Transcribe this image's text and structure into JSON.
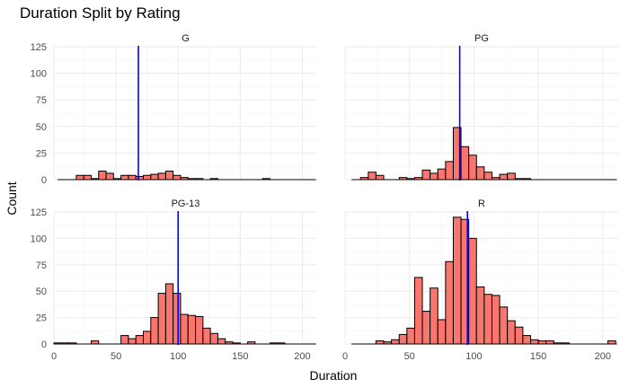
{
  "chart_data": {
    "type": "bar",
    "title": "Duration Split by Rating",
    "xlabel": "Duration",
    "ylabel": "Count",
    "xlim": [
      0,
      212
    ],
    "ylim": [
      0,
      125
    ],
    "x_ticks": [
      0,
      50,
      100,
      150,
      200
    ],
    "y_ticks": [
      0,
      25,
      50,
      75,
      100,
      125
    ],
    "bin_width": 6,
    "bar_color": "#F8766D",
    "vline_color": "#0000FF",
    "grid": true,
    "panels": [
      {
        "name": "G",
        "vline": 68,
        "bins": [
          {
            "x": 21,
            "count": 4
          },
          {
            "x": 27,
            "count": 4
          },
          {
            "x": 33,
            "count": 1
          },
          {
            "x": 39,
            "count": 8
          },
          {
            "x": 45,
            "count": 6
          },
          {
            "x": 51,
            "count": 1
          },
          {
            "x": 57,
            "count": 4
          },
          {
            "x": 63,
            "count": 4
          },
          {
            "x": 69,
            "count": 3
          },
          {
            "x": 75,
            "count": 4
          },
          {
            "x": 81,
            "count": 5
          },
          {
            "x": 87,
            "count": 6
          },
          {
            "x": 93,
            "count": 8
          },
          {
            "x": 99,
            "count": 4
          },
          {
            "x": 105,
            "count": 2
          },
          {
            "x": 111,
            "count": 1
          },
          {
            "x": 117,
            "count": 1
          },
          {
            "x": 129,
            "count": 1
          },
          {
            "x": 171,
            "count": 1
          }
        ]
      },
      {
        "name": "PG",
        "vline": 89,
        "bins": [
          {
            "x": 15,
            "count": 2
          },
          {
            "x": 21,
            "count": 7
          },
          {
            "x": 27,
            "count": 4
          },
          {
            "x": 45,
            "count": 2
          },
          {
            "x": 51,
            "count": 1
          },
          {
            "x": 57,
            "count": 2
          },
          {
            "x": 63,
            "count": 9
          },
          {
            "x": 69,
            "count": 6
          },
          {
            "x": 75,
            "count": 10
          },
          {
            "x": 81,
            "count": 17
          },
          {
            "x": 87,
            "count": 49
          },
          {
            "x": 93,
            "count": 31
          },
          {
            "x": 99,
            "count": 23
          },
          {
            "x": 105,
            "count": 12
          },
          {
            "x": 111,
            "count": 7
          },
          {
            "x": 117,
            "count": 2
          },
          {
            "x": 123,
            "count": 5
          },
          {
            "x": 129,
            "count": 6
          },
          {
            "x": 135,
            "count": 1
          },
          {
            "x": 141,
            "count": 1
          }
        ]
      },
      {
        "name": "PG-13",
        "vline": 100,
        "bins": [
          {
            "x": 3,
            "count": 1
          },
          {
            "x": 9,
            "count": 1
          },
          {
            "x": 15,
            "count": 1
          },
          {
            "x": 33,
            "count": 3
          },
          {
            "x": 57,
            "count": 8
          },
          {
            "x": 63,
            "count": 5
          },
          {
            "x": 69,
            "count": 8
          },
          {
            "x": 75,
            "count": 12
          },
          {
            "x": 81,
            "count": 25
          },
          {
            "x": 87,
            "count": 48
          },
          {
            "x": 93,
            "count": 57
          },
          {
            "x": 99,
            "count": 48
          },
          {
            "x": 105,
            "count": 28
          },
          {
            "x": 111,
            "count": 27
          },
          {
            "x": 117,
            "count": 26
          },
          {
            "x": 123,
            "count": 15
          },
          {
            "x": 129,
            "count": 10
          },
          {
            "x": 135,
            "count": 5
          },
          {
            "x": 141,
            "count": 2
          },
          {
            "x": 147,
            "count": 1
          },
          {
            "x": 159,
            "count": 2
          },
          {
            "x": 177,
            "count": 1
          },
          {
            "x": 183,
            "count": 1
          }
        ]
      },
      {
        "name": "R",
        "vline": 95,
        "bins": [
          {
            "x": 27,
            "count": 3
          },
          {
            "x": 33,
            "count": 2
          },
          {
            "x": 39,
            "count": 4
          },
          {
            "x": 45,
            "count": 9
          },
          {
            "x": 51,
            "count": 15
          },
          {
            "x": 57,
            "count": 63
          },
          {
            "x": 63,
            "count": 31
          },
          {
            "x": 69,
            "count": 53
          },
          {
            "x": 75,
            "count": 23
          },
          {
            "x": 81,
            "count": 78
          },
          {
            "x": 87,
            "count": 120
          },
          {
            "x": 93,
            "count": 118
          },
          {
            "x": 99,
            "count": 100
          },
          {
            "x": 105,
            "count": 54
          },
          {
            "x": 111,
            "count": 47
          },
          {
            "x": 117,
            "count": 46
          },
          {
            "x": 123,
            "count": 35
          },
          {
            "x": 129,
            "count": 22
          },
          {
            "x": 135,
            "count": 16
          },
          {
            "x": 141,
            "count": 8
          },
          {
            "x": 147,
            "count": 4
          },
          {
            "x": 153,
            "count": 3
          },
          {
            "x": 159,
            "count": 3
          },
          {
            "x": 165,
            "count": 1
          },
          {
            "x": 171,
            "count": 1
          },
          {
            "x": 207,
            "count": 3
          }
        ]
      }
    ]
  }
}
